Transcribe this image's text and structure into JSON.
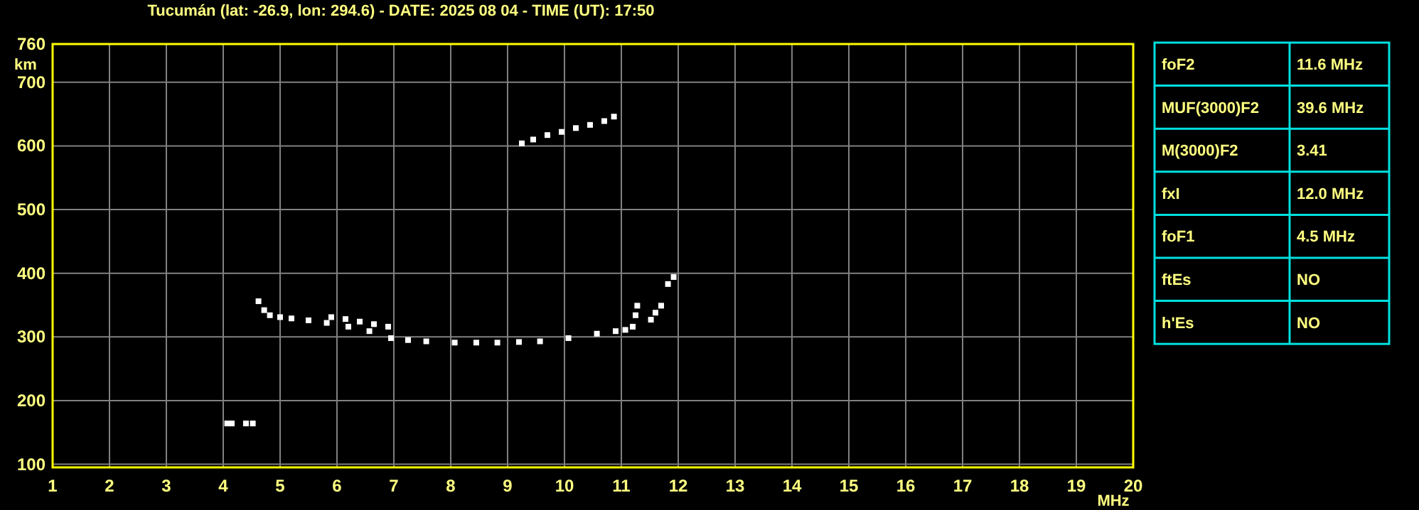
{
  "chart_data": [
    {
      "type": "scatter",
      "title": "Tucumán (lat: -26.9, lon: 294.6) - DATE: 2025 08 04 - TIME (UT): 17:50",
      "xlabel": "MHz",
      "ylabel": "km",
      "xlim": [
        1,
        20
      ],
      "xticks": [
        1,
        2,
        3,
        4,
        5,
        6,
        7,
        8,
        9,
        10,
        11,
        12,
        13,
        14,
        15,
        16,
        17,
        18,
        19,
        20
      ],
      "ylim": [
        95,
        760
      ],
      "yticks": [
        100,
        200,
        300,
        400,
        500,
        600,
        700,
        760
      ],
      "grid": true,
      "marker": "square",
      "series": [
        {
          "color": "#ffffff",
          "x": [
            4.62,
            4.72,
            4.82,
            5.0,
            5.2,
            5.5,
            5.82,
            6.2,
            6.57,
            6.95,
            7.25,
            7.57,
            8.07,
            8.45,
            8.82,
            9.2,
            9.57,
            10.07,
            10.57,
            10.9,
            11.07,
            11.2,
            11.25,
            11.28
          ],
          "values": [
            356,
            342,
            334,
            331,
            329,
            326,
            322,
            316,
            309,
            298,
            295,
            293,
            291,
            291,
            291,
            292,
            293,
            298,
            305,
            309,
            311,
            316,
            334,
            349
          ]
        },
        {
          "color": "#ffffff",
          "x": [
            5.9,
            6.15,
            6.4,
            6.65,
            6.9
          ],
          "values": [
            331,
            328,
            324,
            320,
            316
          ]
        },
        {
          "color": "#ffffff",
          "x": [
            11.52,
            11.6,
            11.7,
            11.82,
            11.92
          ],
          "values": [
            327,
            338,
            349,
            383,
            394
          ]
        },
        {
          "color": "#ffffff",
          "x": [
            9.25,
            9.45,
            9.7,
            9.95,
            10.2,
            10.45,
            10.7,
            10.87
          ],
          "values": [
            604,
            610,
            617,
            622,
            628,
            633,
            639,
            646
          ]
        },
        {
          "color": "#ffffff",
          "x": [
            4.07,
            4.15,
            4.4,
            4.52
          ],
          "values": [
            164,
            164,
            164,
            164
          ]
        }
      ]
    },
    {
      "type": "other",
      "categories": [
        "foF2",
        "MUF(3000)F2",
        "M(3000)F2",
        "fxI",
        "foF1",
        "ftEs",
        "h'Es"
      ],
      "value_labels": [
        "11.6 MHz",
        "39.6 MHz",
        "3.41",
        "12.0 MHz",
        "4.5 MHz",
        "NO",
        "NO"
      ]
    }
  ]
}
